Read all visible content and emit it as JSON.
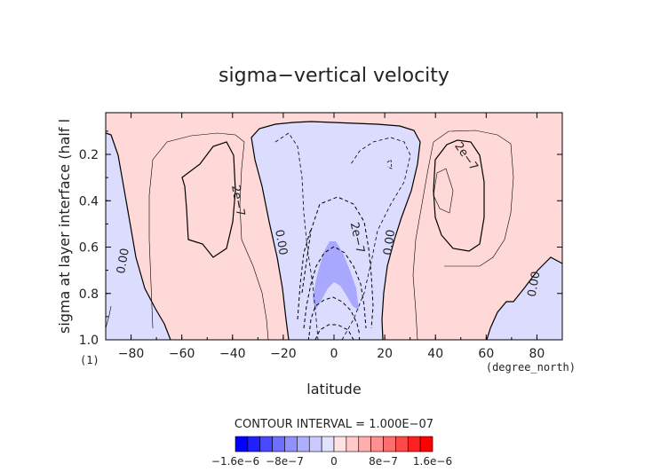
{
  "chart_data": {
    "type": "contour",
    "title": "sigma−vertical velocity",
    "xlabel": "latitude",
    "xunit": "(degree_north)",
    "ylabel": "sigma at layer interface (half l",
    "yunit": "(1)",
    "xlim": [
      -90,
      90
    ],
    "ylim": [
      1.0,
      0.02
    ],
    "y_inverted": true,
    "x_ticks": [
      -80,
      -60,
      -40,
      -20,
      0,
      20,
      40,
      60,
      80
    ],
    "x_tick_labels": [
      "−80",
      "−60",
      "−40",
      "−20",
      "0",
      "20",
      "40",
      "60",
      "80"
    ],
    "y_ticks": [
      0.2,
      0.4,
      0.6,
      0.8,
      1.0
    ],
    "y_tick_labels": [
      "0.2",
      "0.4",
      "0.6",
      "0.8",
      "1.0"
    ],
    "contour_interval_text": "CONTOUR INTERVAL = 1.000E−07",
    "contour_labels": [
      {
        "text": "0.00",
        "x": -83,
        "y": 0.66,
        "angle": -80
      },
      {
        "text": "0.00",
        "x": -21,
        "y": 0.58,
        "angle": 80
      },
      {
        "text": "2e−7",
        "x": -38,
        "y": 0.4,
        "angle": 80
      },
      {
        "text": "2e−7",
        "x": 9,
        "y": 0.56,
        "angle": 78
      },
      {
        "text": "0.00",
        "x": 22,
        "y": 0.58,
        "angle": -82
      },
      {
        "text": "2e−7",
        "x": 52,
        "y": 0.21,
        "angle": 55
      },
      {
        "text": "0.00",
        "x": 79,
        "y": 0.76,
        "angle": -80
      }
    ],
    "colorbar": {
      "colors": [
        "#0000ff",
        "#2020ff",
        "#4848ff",
        "#6e6eff",
        "#9090ff",
        "#aeaeff",
        "#cacaff",
        "#e2e2ff",
        "#ffe2e2",
        "#ffcaca",
        "#ffaeae",
        "#ff9090",
        "#ff6e6e",
        "#ff4848",
        "#ff2020",
        "#ff0000"
      ],
      "tick_labels": [
        "−1.6e−6",
        "−8e−7",
        "0",
        "8e−7",
        "1.6e−6"
      ],
      "tick_values": [
        -1.6e-06,
        -8e-07,
        0,
        8e-07,
        1.6e-06
      ],
      "range": [
        -1.6e-06,
        1.6e-06
      ]
    },
    "regions_note_colors": {
      "positive_fill": "#ffd8d8",
      "negative_fill": "#dcdcff",
      "strong_negative_fill": "#a8a8ff"
    }
  }
}
